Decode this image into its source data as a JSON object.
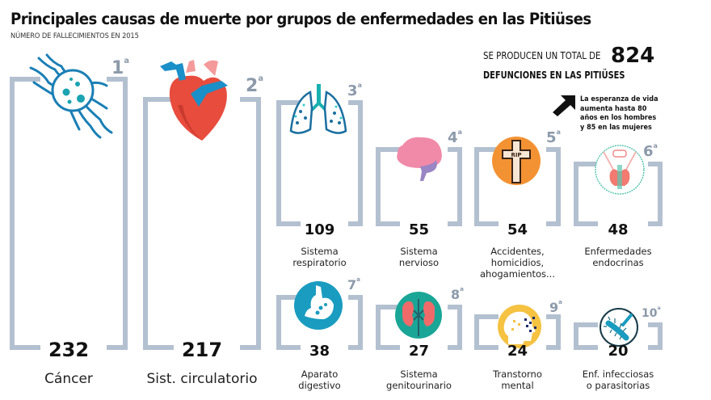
{
  "header": {
    "title": "Principales causas de muerte por grupos de enfermedades en las Pitiüses",
    "subtitle": "NÚMERO DE FALLECIMIENTOS EN 2015"
  },
  "summary": {
    "total_prefix": "SE PRODUCEN UN TOTAL DE",
    "total_value": "824",
    "total_suffix": "DEFUNCIONES EN LAS PITIÜSES",
    "note_icon": "arrow-up-right-icon",
    "note_lines": [
      "La esperanza de vida",
      "aumenta hasta 80",
      "años en los hombres",
      "y 85 en las mujeres"
    ]
  },
  "causes": [
    {
      "rank": "1",
      "value": "232",
      "label_lines": [
        "Cáncer"
      ],
      "icon": "cancer-cell-icon"
    },
    {
      "rank": "2",
      "value": "217",
      "label_lines": [
        "Sist. circulatorio"
      ],
      "icon": "heart-icon"
    },
    {
      "rank": "3",
      "value": "109",
      "label_lines": [
        "Sistema",
        "respiratorio"
      ],
      "icon": "lungs-icon"
    },
    {
      "rank": "4",
      "value": "55",
      "label_lines": [
        "Sistema",
        "nervioso"
      ],
      "icon": "brain-icon"
    },
    {
      "rank": "5",
      "value": "54",
      "label_lines": [
        "Accidentes,",
        "homicidios,",
        "ahogamientos..."
      ],
      "icon": "rip-cross-icon",
      "icon_text": "RIP"
    },
    {
      "rank": "6",
      "value": "48",
      "label_lines": [
        "Enfermedades",
        "endocrinas"
      ],
      "icon": "thyroid-icon"
    },
    {
      "rank": "7",
      "value": "38",
      "label_lines": [
        "Aparato",
        "digestivo"
      ],
      "icon": "stomach-icon"
    },
    {
      "rank": "8",
      "value": "27",
      "label_lines": [
        "Sistema",
        "genitourinario"
      ],
      "icon": "kidneys-icon"
    },
    {
      "rank": "9",
      "value": "24",
      "label_lines": [
        "Transtorno",
        "mental"
      ],
      "icon": "mental-head-icon"
    },
    {
      "rank": "10",
      "value": "20",
      "label_lines": [
        "Enf. infecciosas",
        "o parasitorias"
      ],
      "icon": "bacteria-icon"
    }
  ],
  "rank_suffix": "a",
  "colors": {
    "bracket": "#b3c0d0",
    "rank": "#8c9aaa",
    "teal": "#1a8fb0",
    "heart": "#e84c3d",
    "brain": "#f08aa8",
    "rip": "#f39233",
    "mental": "#f5c242"
  },
  "chart_data": {
    "type": "bar",
    "title": "Principales causas de muerte por grupos de enfermedades en las Pitiüses",
    "subtitle": "NÚMERO DE FALLECIMIENTOS EN 2015",
    "categories": [
      "Cáncer",
      "Sist. circulatorio",
      "Sistema respiratorio",
      "Sistema nervioso",
      "Accidentes, homicidios, ahogamientos...",
      "Enfermedades endocrinas",
      "Aparato digestivo",
      "Sistema genitourinario",
      "Transtorno mental",
      "Enf. infecciosas o parasitorias"
    ],
    "values": [
      232,
      217,
      109,
      55,
      54,
      48,
      38,
      27,
      24,
      20
    ],
    "ranks": [
      1,
      2,
      3,
      4,
      5,
      6,
      7,
      8,
      9,
      10
    ],
    "total": 824,
    "xlabel": "",
    "ylabel": "Fallecimientos"
  }
}
